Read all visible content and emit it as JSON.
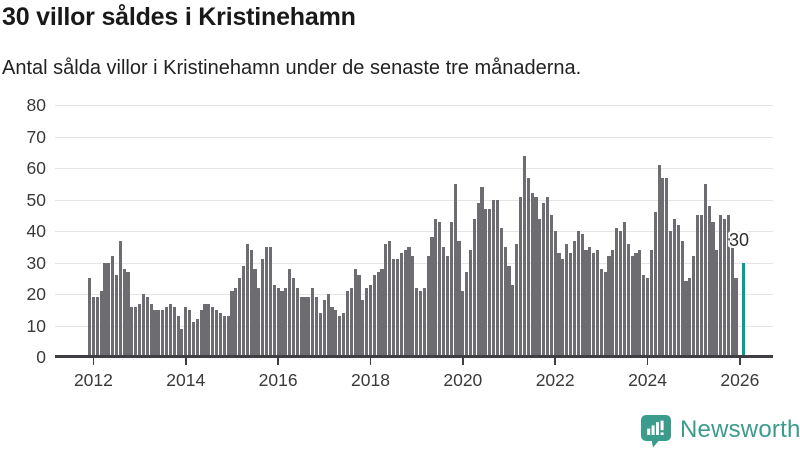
{
  "header": {
    "title": "30 villor såldes i Kristinehamn",
    "subtitle": "Antal sålda villor i Kristinehamn under de senaste tre månaderna."
  },
  "chart_data": {
    "type": "bar",
    "title": "30 villor såldes i Kristinehamn",
    "subtitle": "Antal sålda villor i Kristinehamn under de senaste tre månaderna.",
    "x_unit": "month",
    "x_start": "2011-12",
    "x_end": "2026-02",
    "frequency": "monthly, rolling 3-month count of houses sold",
    "values": [
      25,
      19,
      19,
      21,
      30,
      30,
      32,
      26,
      37,
      28,
      27,
      16,
      16,
      17,
      20,
      19,
      17,
      15,
      15,
      15,
      16,
      17,
      16,
      13,
      9,
      16,
      15,
      11,
      12,
      15,
      17,
      17,
      16,
      15,
      14,
      13,
      13,
      21,
      22,
      25,
      29,
      36,
      34,
      28,
      22,
      31,
      35,
      35,
      23,
      22,
      21,
      22,
      28,
      25,
      22,
      19,
      19,
      19,
      22,
      19,
      14,
      18,
      20,
      16,
      15,
      13,
      14,
      21,
      22,
      28,
      26,
      18,
      22,
      23,
      26,
      27,
      28,
      36,
      37,
      31,
      31,
      33,
      34,
      35,
      32,
      22,
      21,
      22,
      32,
      38,
      44,
      43,
      35,
      32,
      43,
      55,
      37,
      21,
      27,
      34,
      44,
      49,
      54,
      47,
      47,
      50,
      50,
      41,
      35,
      29,
      23,
      36,
      51,
      64,
      57,
      52,
      51,
      44,
      49,
      51,
      45,
      40,
      33,
      31,
      36,
      33,
      37,
      40,
      39,
      34,
      35,
      33,
      34,
      28,
      27,
      32,
      34,
      41,
      40,
      43,
      36,
      32,
      33,
      34,
      26,
      25,
      34,
      46,
      61,
      57,
      57,
      40,
      44,
      42,
      37,
      24,
      25,
      32,
      45,
      45,
      55,
      48,
      43,
      34,
      45,
      44,
      45,
      40,
      25,
      null,
      30
    ],
    "highlight": {
      "index": 170,
      "value": 30,
      "label": "30",
      "color": "#00a099"
    },
    "bar_color": "#6c6c71",
    "gridline_color": "#e5e5e5",
    "axis_color": "#3e3e43",
    "ylim": [
      0,
      80
    ],
    "y_ticks": [
      0,
      10,
      20,
      30,
      40,
      50,
      60,
      70,
      80
    ],
    "x_tick_labels": [
      "2012",
      "2014",
      "2016",
      "2018",
      "2020",
      "2022",
      "2024",
      "2026"
    ],
    "grid": true,
    "legend": false
  },
  "footer": {
    "brand": "Newsworthy",
    "brand_color": "#3b9c8e",
    "logo_icon": "bar-chart-speech-bubble-icon"
  }
}
